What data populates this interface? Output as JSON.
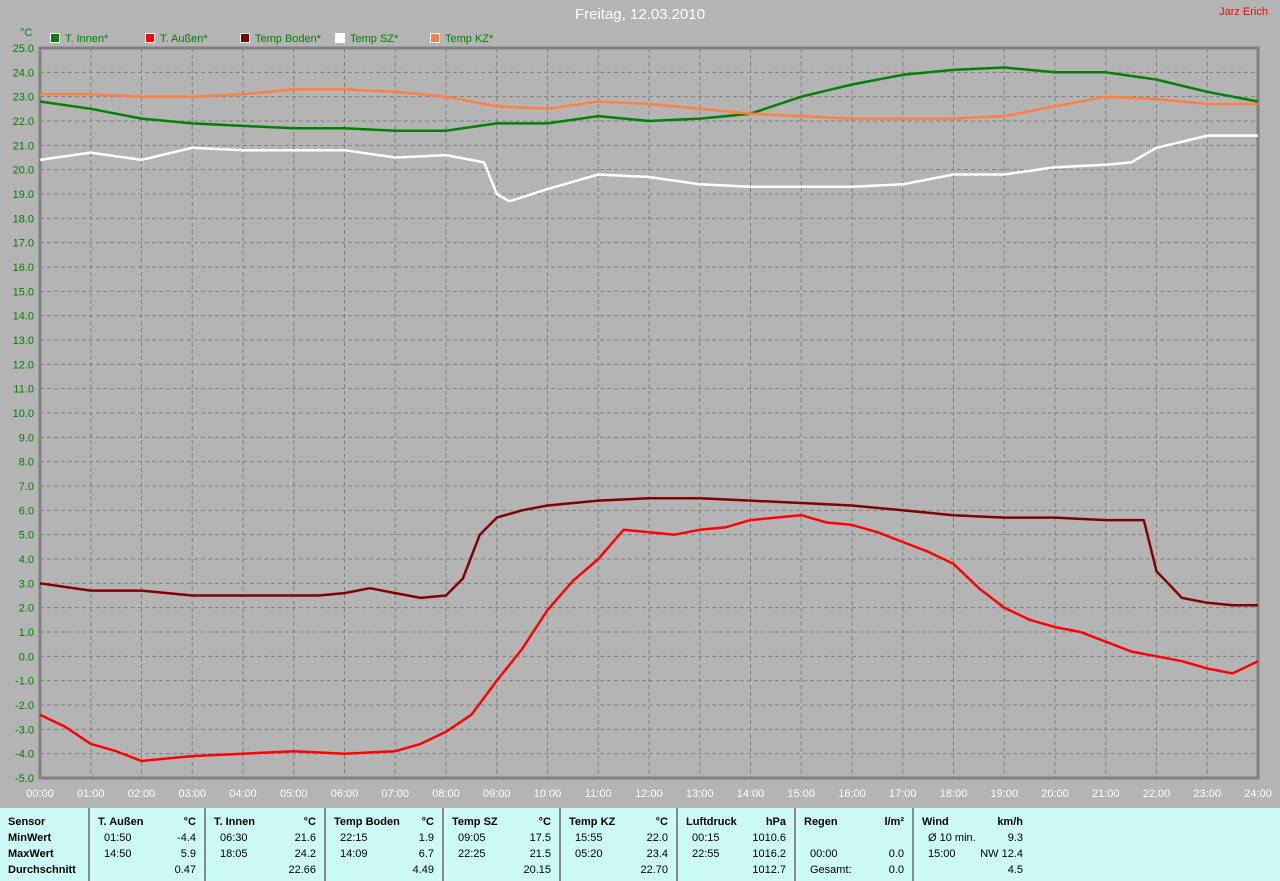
{
  "title": "Freitag, 12.03.2010",
  "author": "Jarz Erich",
  "chart_data": {
    "type": "line",
    "title": "Freitag, 12.03.2010",
    "ylabel": "°C",
    "ylim": [
      -5.0,
      25.0
    ],
    "xlim": [
      "00:00",
      "24:00"
    ],
    "grid": true,
    "legend_position": "top-left",
    "x_ticks": [
      "00:00",
      "01:00",
      "02:00",
      "03:00",
      "04:00",
      "05:00",
      "06:00",
      "07:00",
      "08:00",
      "09:00",
      "10:00",
      "11:00",
      "12:00",
      "13:00",
      "14:00",
      "15:00",
      "16:00",
      "17:00",
      "18:00",
      "19:00",
      "20:00",
      "21:00",
      "22:00",
      "23:00",
      "24:00"
    ],
    "y_ticks": [
      "25.0",
      "24.0",
      "23.0",
      "22.0",
      "21.0",
      "20.0",
      "19.0",
      "18.0",
      "17.0",
      "16.0",
      "15.0",
      "14.0",
      "13.0",
      "12.0",
      "11.0",
      "10.0",
      "9.0",
      "8.0",
      "7.0",
      "6.0",
      "5.0",
      "4.0",
      "3.0",
      "2.0",
      "1.0",
      "0.0",
      "-1.0",
      "-2.0",
      "-3.0",
      "-4.0",
      "-5.0"
    ],
    "series": [
      {
        "name": "T. Innen*",
        "color": "#008000",
        "x": [
          "00:00",
          "01:00",
          "02:00",
          "03:00",
          "04:00",
          "05:00",
          "06:00",
          "07:00",
          "08:00",
          "09:00",
          "10:00",
          "11:00",
          "12:00",
          "13:00",
          "14:00",
          "15:00",
          "16:00",
          "17:00",
          "18:00",
          "19:00",
          "20:00",
          "21:00",
          "22:00",
          "23:00",
          "24:00"
        ],
        "y": [
          22.8,
          22.5,
          22.1,
          21.9,
          21.8,
          21.7,
          21.7,
          21.6,
          21.6,
          21.9,
          21.9,
          22.2,
          22.0,
          22.1,
          22.3,
          23.0,
          23.5,
          23.9,
          24.1,
          24.2,
          24.0,
          24.0,
          23.7,
          23.2,
          22.8
        ]
      },
      {
        "name": "T. Außen*",
        "color": "#ff0000",
        "x": [
          "00:00",
          "00:30",
          "01:00",
          "01:30",
          "02:00",
          "02:30",
          "03:00",
          "04:00",
          "05:00",
          "06:00",
          "07:00",
          "07:30",
          "08:00",
          "08:30",
          "09:00",
          "09:30",
          "10:00",
          "10:30",
          "11:00",
          "11:30",
          "12:00",
          "12:30",
          "13:00",
          "13:30",
          "14:00",
          "14:30",
          "15:00",
          "15:30",
          "16:00",
          "16:30",
          "17:00",
          "17:30",
          "18:00",
          "18:30",
          "19:00",
          "19:30",
          "20:00",
          "20:30",
          "21:00",
          "21:30",
          "22:00",
          "22:30",
          "23:00",
          "23:30",
          "24:00"
        ],
        "y": [
          -2.4,
          -2.9,
          -3.6,
          -3.9,
          -4.3,
          -4.2,
          -4.1,
          -4.0,
          -3.9,
          -4.0,
          -3.9,
          -3.6,
          -3.1,
          -2.4,
          -1.0,
          0.3,
          1.9,
          3.1,
          4.0,
          5.2,
          5.1,
          5.0,
          5.2,
          5.3,
          5.6,
          5.7,
          5.8,
          5.5,
          5.4,
          5.1,
          4.7,
          4.3,
          3.8,
          2.8,
          2.0,
          1.5,
          1.2,
          1.0,
          0.6,
          0.2,
          0.0,
          -0.2,
          -0.5,
          -0.7,
          -0.2
        ]
      },
      {
        "name": "Temp Boden*",
        "color": "#800000",
        "x": [
          "00:00",
          "01:00",
          "02:00",
          "03:00",
          "04:00",
          "05:00",
          "05:30",
          "06:00",
          "06:30",
          "07:00",
          "07:30",
          "08:00",
          "08:20",
          "08:40",
          "09:00",
          "09:30",
          "10:00",
          "11:00",
          "12:00",
          "13:00",
          "14:00",
          "15:00",
          "16:00",
          "17:00",
          "18:00",
          "19:00",
          "20:00",
          "21:00",
          "21:45",
          "22:00",
          "22:30",
          "23:00",
          "23:30",
          "24:00"
        ],
        "y": [
          3.0,
          2.7,
          2.7,
          2.5,
          2.5,
          2.5,
          2.5,
          2.6,
          2.8,
          2.6,
          2.4,
          2.5,
          3.2,
          5.0,
          5.7,
          6.0,
          6.2,
          6.4,
          6.5,
          6.5,
          6.4,
          6.3,
          6.2,
          6.0,
          5.8,
          5.7,
          5.7,
          5.6,
          5.6,
          3.5,
          2.4,
          2.2,
          2.1,
          2.1
        ]
      },
      {
        "name": "Temp SZ*",
        "color": "#ffffff",
        "x": [
          "00:00",
          "01:00",
          "02:00",
          "03:00",
          "04:00",
          "05:00",
          "06:00",
          "07:00",
          "08:00",
          "08:45",
          "09:00",
          "09:15",
          "10:00",
          "11:00",
          "12:00",
          "13:00",
          "14:00",
          "15:00",
          "16:00",
          "17:00",
          "18:00",
          "19:00",
          "20:00",
          "21:00",
          "21:30",
          "22:00",
          "23:00",
          "24:00"
        ],
        "y": [
          20.4,
          20.7,
          20.4,
          20.9,
          20.8,
          20.8,
          20.8,
          20.5,
          20.6,
          20.3,
          19.0,
          18.7,
          19.2,
          19.8,
          19.7,
          19.4,
          19.3,
          19.3,
          19.3,
          19.4,
          19.8,
          19.8,
          20.1,
          20.2,
          20.3,
          20.9,
          21.4,
          21.4
        ]
      },
      {
        "name": "Temp KZ*",
        "color": "#ff8040",
        "x": [
          "00:00",
          "01:00",
          "02:00",
          "03:00",
          "04:00",
          "05:00",
          "06:00",
          "07:00",
          "08:00",
          "09:00",
          "10:00",
          "11:00",
          "12:00",
          "13:00",
          "14:00",
          "15:00",
          "16:00",
          "17:00",
          "18:00",
          "19:00",
          "20:00",
          "21:00",
          "22:00",
          "23:00",
          "24:00"
        ],
        "y": [
          23.1,
          23.1,
          23.0,
          23.0,
          23.1,
          23.3,
          23.3,
          23.2,
          23.0,
          22.6,
          22.5,
          22.8,
          22.7,
          22.5,
          22.3,
          22.2,
          22.1,
          22.1,
          22.1,
          22.2,
          22.6,
          23.0,
          22.9,
          22.7,
          22.7
        ]
      }
    ]
  },
  "stats": {
    "sensor": {
      "header": "Sensor",
      "min": "MinWert",
      "max": "MaxWert",
      "avg": "Durchschnitt"
    },
    "columns": [
      {
        "name": "T. Außen",
        "unit": "°C",
        "min_time": "01:50",
        "min": "-4.4",
        "max_time": "14:50",
        "max": "5.9",
        "avg": "0.47"
      },
      {
        "name": "T. Innen",
        "unit": "°C",
        "min_time": "06:30",
        "min": "21.6",
        "max_time": "18:05",
        "max": "24.2",
        "avg": "22.66"
      },
      {
        "name": "Temp Boden",
        "unit": "°C",
        "min_time": "22:15",
        "min": "1.9",
        "max_time": "14:09",
        "max": "6.7",
        "avg": "4.49"
      },
      {
        "name": "Temp SZ",
        "unit": "°C",
        "min_time": "09:05",
        "min": "17.5",
        "max_time": "22:25",
        "max": "21.5",
        "avg": "20.15"
      },
      {
        "name": "Temp KZ",
        "unit": "°C",
        "min_time": "15:55",
        "min": "22.0",
        "max_time": "05:20",
        "max": "23.4",
        "avg": "22.70"
      },
      {
        "name": "Luftdruck",
        "unit": "hPa",
        "min_time": "00:15",
        "min": "1010.6",
        "max_time": "22:55",
        "max": "1016.2",
        "avg": "1012.7"
      },
      {
        "name": "Regen",
        "unit": "l/m²",
        "min_time": "",
        "min": "",
        "max_time": "00:00",
        "max": "0.0",
        "avg_label": "Gesamt:",
        "avg": "0.0"
      },
      {
        "name": "Wind",
        "unit": "km/h",
        "min_time": "Ø 10 min.",
        "min": "9.3",
        "max_time": "15:00",
        "max": "NW 12.4",
        "avg": "4.5"
      }
    ]
  }
}
